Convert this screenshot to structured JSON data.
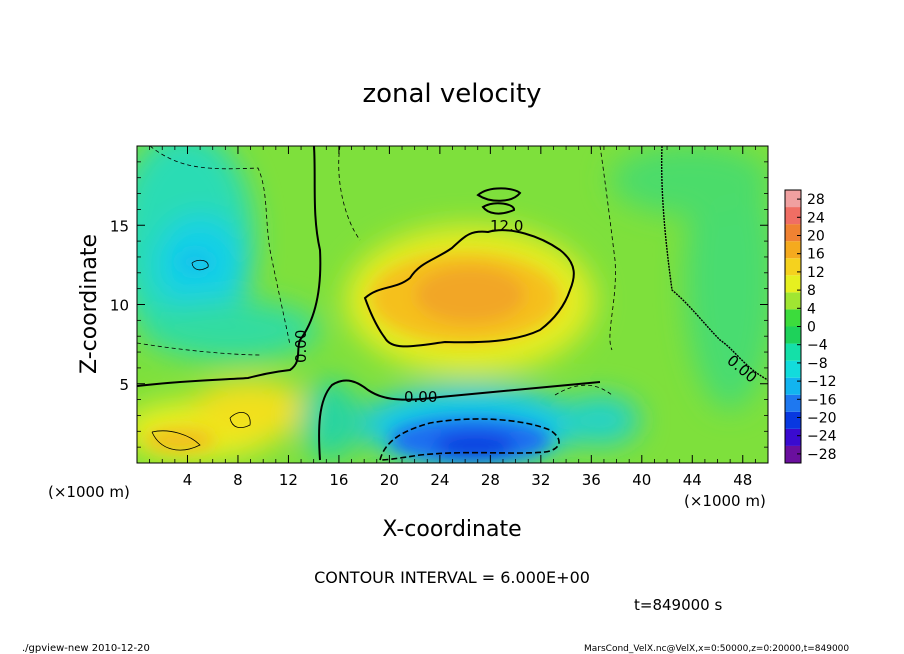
{
  "chart_data": {
    "type": "heatmap",
    "title": "zonal velocity",
    "xlabel": "X-coordinate",
    "ylabel": "Z-coordinate",
    "x_unit": "(×1000 m)",
    "y_unit": "(×1000 m)",
    "xlim": [
      0,
      50
    ],
    "ylim": [
      0,
      20
    ],
    "x_ticks": [
      4,
      8,
      12,
      16,
      20,
      24,
      28,
      32,
      36,
      40,
      44,
      48
    ],
    "y_ticks": [
      5,
      10,
      15
    ],
    "colorbar_ticks": [
      28,
      24,
      20,
      16,
      12,
      8,
      4,
      0,
      -4,
      -8,
      -12,
      -16,
      -20,
      -24,
      -28
    ],
    "colorbar_range": [
      -30,
      30
    ],
    "contour_interval_text": "CONTOUR INTERVAL = 6.000E+00",
    "contour_labels": [
      "12.0",
      "0.00",
      "0.00",
      "0.00"
    ],
    "time_text": "t=849000 s",
    "footer_left": "./gpview-new  2010-12-20",
    "footer_right": "MarsCond_VelX.nc@VelX,x=0:50000,z=0:20000,t=849000"
  },
  "colors": {
    "ramp": [
      "#6a0f9e",
      "#3a0ad0",
      "#0838e0",
      "#1e78f0",
      "#12b4f0",
      "#12dcdc",
      "#14e0a8",
      "#1ed25a",
      "#3cdc3c",
      "#a0e632",
      "#e6f020",
      "#f5d21e",
      "#f5aa1e",
      "#f08232",
      "#f06e64",
      "#f0a0a0"
    ]
  }
}
